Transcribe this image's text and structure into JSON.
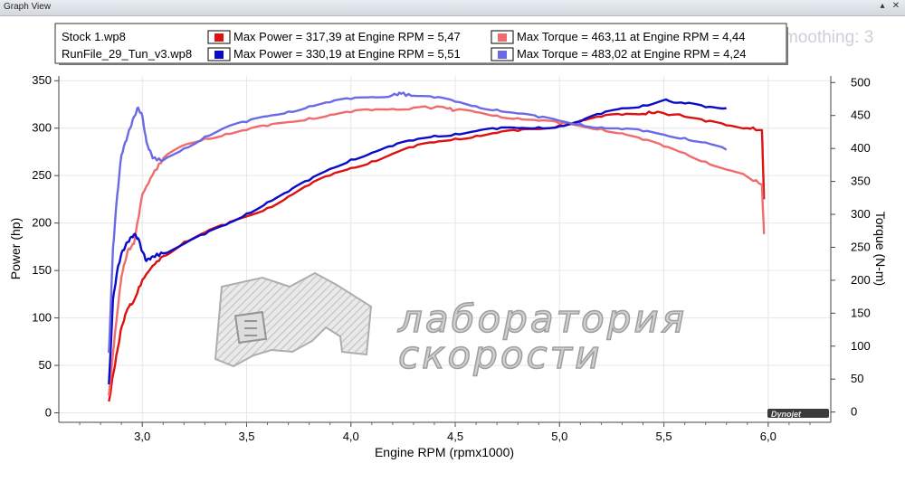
{
  "window": {
    "title": "Graph View",
    "pin_icon": "pin-icon",
    "close_icon": "close-icon"
  },
  "overlay_text": "moothing: 3",
  "watermark": {
    "line1": "лаборатория",
    "line2": "скорости"
  },
  "legend": {
    "rows": [
      {
        "file": "Stock 1.wp8",
        "power_text": "Max Power = 317,39 at Engine RPM = 5,47",
        "torque_text": "Max Torque = 463,11 at Engine RPM = 4,44",
        "power_color": "#dd1111",
        "torque_color": "#f06c6c"
      },
      {
        "file": "RunFile_29_Tun_v3.wp8",
        "power_text": "Max Power = 330,19 at Engine RPM = 5,51",
        "torque_text": "Max Torque = 483,02 at Engine RPM = 4,24",
        "power_color": "#0a0ac8",
        "torque_color": "#6a6ae6"
      }
    ]
  },
  "chart_data": {
    "type": "line",
    "xlabel": "Engine RPM (rpmx1000)",
    "ylabel_left": "Power (hp)",
    "ylabel_right": "Torque (N-m)",
    "xlim": [
      2.6,
      6.3
    ],
    "ylim_left": [
      -10,
      355
    ],
    "ylim_right": [
      -15.6,
      510
    ],
    "x_ticks": [
      "3,0",
      "3,5",
      "4,0",
      "4,5",
      "5,0",
      "5,5",
      "6,0"
    ],
    "x_tick_values": [
      3.0,
      3.5,
      4.0,
      4.5,
      5.0,
      5.5,
      6.0
    ],
    "y_left_ticks": [
      0,
      50,
      100,
      150,
      200,
      250,
      300,
      350
    ],
    "y_right_ticks": [
      0,
      50,
      100,
      150,
      200,
      250,
      300,
      350,
      400,
      450,
      500
    ],
    "series": [
      {
        "name": "Stock 1.wp8 — Max Power",
        "axis": "left",
        "color": "#dd1111",
        "points": [
          [
            2.84,
            12
          ],
          [
            2.86,
            40
          ],
          [
            2.88,
            65
          ],
          [
            2.9,
            90
          ],
          [
            2.93,
            110
          ],
          [
            2.96,
            118
          ],
          [
            3.0,
            140
          ],
          [
            3.05,
            155
          ],
          [
            3.1,
            165
          ],
          [
            3.2,
            180
          ],
          [
            3.3,
            190
          ],
          [
            3.4,
            198
          ],
          [
            3.5,
            207
          ],
          [
            3.6,
            216
          ],
          [
            3.7,
            228
          ],
          [
            3.8,
            240
          ],
          [
            3.9,
            250
          ],
          [
            4.0,
            258
          ],
          [
            4.1,
            265
          ],
          [
            4.2,
            273
          ],
          [
            4.3,
            280
          ],
          [
            4.4,
            285
          ],
          [
            4.5,
            289
          ],
          [
            4.6,
            292
          ],
          [
            4.7,
            295
          ],
          [
            4.8,
            297
          ],
          [
            4.9,
            299
          ],
          [
            5.0,
            303
          ],
          [
            5.1,
            308
          ],
          [
            5.2,
            312
          ],
          [
            5.3,
            314
          ],
          [
            5.4,
            315
          ],
          [
            5.47,
            317.4
          ],
          [
            5.6,
            312
          ],
          [
            5.7,
            307
          ],
          [
            5.8,
            303
          ],
          [
            5.9,
            300
          ],
          [
            5.97,
            298
          ],
          [
            5.98,
            225
          ]
        ]
      },
      {
        "name": "Stock 1.wp8 — Max Torque",
        "axis": "right",
        "color": "#f06c6c",
        "points": [
          [
            2.84,
            25
          ],
          [
            2.86,
            90
          ],
          [
            2.88,
            150
          ],
          [
            2.9,
            205
          ],
          [
            2.93,
            245
          ],
          [
            2.96,
            255
          ],
          [
            3.0,
            330
          ],
          [
            3.05,
            360
          ],
          [
            3.1,
            385
          ],
          [
            3.2,
            405
          ],
          [
            3.3,
            415
          ],
          [
            3.4,
            422
          ],
          [
            3.5,
            428
          ],
          [
            3.6,
            434
          ],
          [
            3.7,
            440
          ],
          [
            3.8,
            446
          ],
          [
            3.9,
            451
          ],
          [
            4.0,
            455
          ],
          [
            4.1,
            458
          ],
          [
            4.2,
            460
          ],
          [
            4.3,
            462
          ],
          [
            4.44,
            463.1
          ],
          [
            4.5,
            458
          ],
          [
            4.6,
            455
          ],
          [
            4.7,
            450
          ],
          [
            4.8,
            446
          ],
          [
            4.9,
            442
          ],
          [
            5.0,
            438
          ],
          [
            5.1,
            434
          ],
          [
            5.2,
            430
          ],
          [
            5.3,
            423
          ],
          [
            5.4,
            413
          ],
          [
            5.5,
            403
          ],
          [
            5.6,
            393
          ],
          [
            5.7,
            380
          ],
          [
            5.8,
            368
          ],
          [
            5.9,
            357
          ],
          [
            5.97,
            345
          ],
          [
            5.98,
            270
          ]
        ]
      },
      {
        "name": "RunFile_29_Tun_v3.wp8 — Max Power",
        "axis": "left",
        "color": "#0a0ac8",
        "points": [
          [
            2.84,
            30
          ],
          [
            2.86,
            120
          ],
          [
            2.88,
            150
          ],
          [
            2.9,
            168
          ],
          [
            2.93,
            180
          ],
          [
            2.96,
            188
          ],
          [
            2.98,
            184
          ],
          [
            3.0,
            170
          ],
          [
            3.02,
            160
          ],
          [
            3.05,
            165
          ],
          [
            3.1,
            168
          ],
          [
            3.2,
            178
          ],
          [
            3.3,
            188
          ],
          [
            3.4,
            198
          ],
          [
            3.5,
            210
          ],
          [
            3.6,
            222
          ],
          [
            3.7,
            233
          ],
          [
            3.8,
            245
          ],
          [
            3.9,
            257
          ],
          [
            4.0,
            267
          ],
          [
            4.1,
            274
          ],
          [
            4.2,
            281
          ],
          [
            4.3,
            287
          ],
          [
            4.4,
            292
          ],
          [
            4.5,
            294
          ],
          [
            4.6,
            297
          ],
          [
            4.7,
            299
          ],
          [
            4.8,
            300
          ],
          [
            4.9,
            301
          ],
          [
            5.0,
            302
          ],
          [
            5.1,
            307
          ],
          [
            5.2,
            315
          ],
          [
            5.3,
            321
          ],
          [
            5.4,
            324
          ],
          [
            5.51,
            330.2
          ],
          [
            5.6,
            326
          ],
          [
            5.7,
            322
          ],
          [
            5.8,
            321
          ]
        ]
      },
      {
        "name": "RunFile_29_Tun_v3.wp8 — Max Torque",
        "axis": "right",
        "color": "#6a6ae6",
        "points": [
          [
            2.84,
            90
          ],
          [
            2.86,
            250
          ],
          [
            2.88,
            330
          ],
          [
            2.9,
            390
          ],
          [
            2.93,
            420
          ],
          [
            2.96,
            448
          ],
          [
            2.98,
            462
          ],
          [
            3.0,
            450
          ],
          [
            3.02,
            410
          ],
          [
            3.05,
            385
          ],
          [
            3.1,
            382
          ],
          [
            3.2,
            400
          ],
          [
            3.3,
            418
          ],
          [
            3.4,
            432
          ],
          [
            3.5,
            440
          ],
          [
            3.6,
            449
          ],
          [
            3.7,
            456
          ],
          [
            3.8,
            464
          ],
          [
            3.9,
            470
          ],
          [
            4.0,
            475
          ],
          [
            4.1,
            478
          ],
          [
            4.2,
            481
          ],
          [
            4.24,
            483
          ],
          [
            4.3,
            480
          ],
          [
            4.4,
            477
          ],
          [
            4.5,
            471
          ],
          [
            4.6,
            464
          ],
          [
            4.7,
            459
          ],
          [
            4.8,
            453
          ],
          [
            4.9,
            447
          ],
          [
            5.0,
            442
          ],
          [
            5.1,
            437
          ],
          [
            5.2,
            432
          ],
          [
            5.3,
            429
          ],
          [
            5.4,
            426
          ],
          [
            5.5,
            421
          ],
          [
            5.6,
            416
          ],
          [
            5.7,
            409
          ],
          [
            5.8,
            398
          ]
        ]
      }
    ]
  }
}
